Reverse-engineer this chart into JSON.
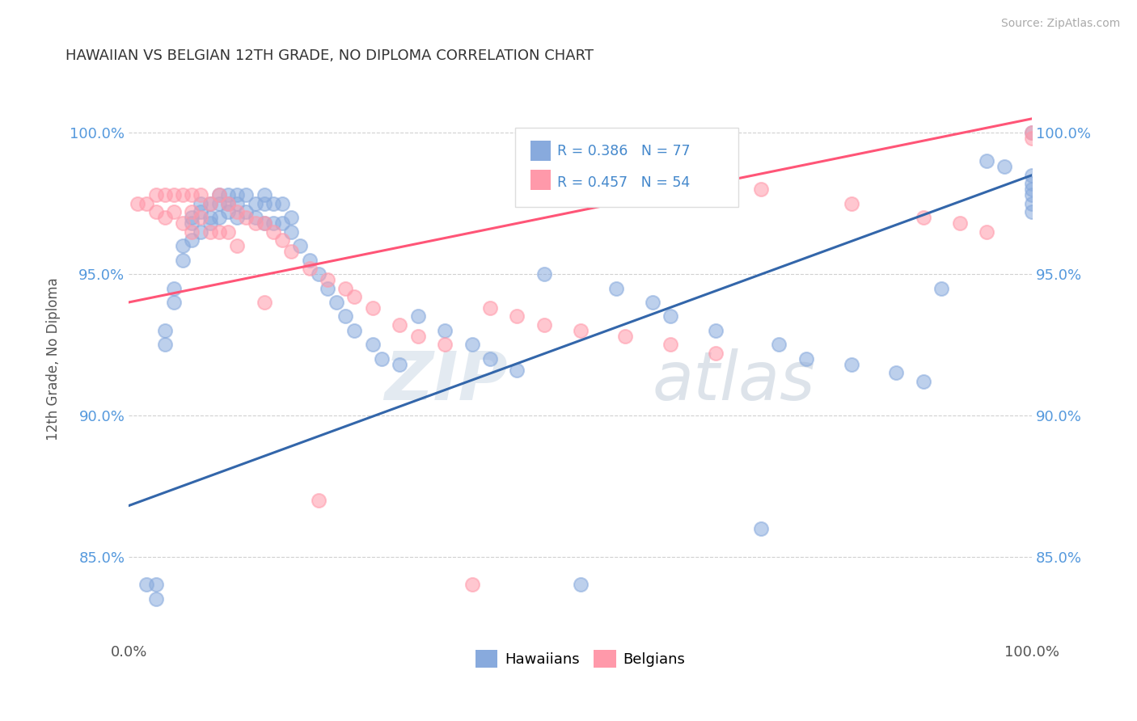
{
  "title": "HAWAIIAN VS BELGIAN 12TH GRADE, NO DIPLOMA CORRELATION CHART",
  "source_text": "Source: ZipAtlas.com",
  "ylabel": "12th Grade, No Diploma",
  "xlim": [
    0.0,
    1.0
  ],
  "ylim": [
    0.82,
    1.02
  ],
  "ytick_values": [
    0.85,
    0.9,
    0.95,
    1.0
  ],
  "legend_R_hawaiian": "R = 0.386",
  "legend_N_hawaiian": "N = 77",
  "legend_R_belgian": "R = 0.457",
  "legend_N_belgian": "N = 54",
  "color_hawaiian": "#88AADD",
  "color_belgian": "#FF99AA",
  "color_line_hawaiian": "#3366AA",
  "color_line_belgian": "#FF5577",
  "hawaiian_line_start_y": 0.868,
  "hawaiian_line_end_y": 0.985,
  "belgian_line_start_y": 0.94,
  "belgian_line_end_y": 1.005,
  "hawaiian_x": [
    0.02,
    0.03,
    0.03,
    0.04,
    0.04,
    0.05,
    0.05,
    0.06,
    0.06,
    0.07,
    0.07,
    0.07,
    0.08,
    0.08,
    0.08,
    0.09,
    0.09,
    0.09,
    0.1,
    0.1,
    0.1,
    0.11,
    0.11,
    0.11,
    0.12,
    0.12,
    0.12,
    0.13,
    0.13,
    0.14,
    0.14,
    0.15,
    0.15,
    0.15,
    0.16,
    0.16,
    0.17,
    0.17,
    0.18,
    0.18,
    0.19,
    0.2,
    0.21,
    0.22,
    0.23,
    0.24,
    0.25,
    0.27,
    0.28,
    0.3,
    0.32,
    0.35,
    0.38,
    0.4,
    0.43,
    0.46,
    0.5,
    0.54,
    0.58,
    0.6,
    0.65,
    0.7,
    0.72,
    0.75,
    0.8,
    0.85,
    0.88,
    0.9,
    0.95,
    0.97,
    1.0,
    1.0,
    1.0,
    1.0,
    1.0,
    1.0,
    1.0
  ],
  "hawaiian_y": [
    0.84,
    0.84,
    0.835,
    0.93,
    0.925,
    0.945,
    0.94,
    0.96,
    0.955,
    0.97,
    0.968,
    0.962,
    0.975,
    0.972,
    0.965,
    0.975,
    0.97,
    0.968,
    0.978,
    0.975,
    0.97,
    0.978,
    0.975,
    0.972,
    0.978,
    0.975,
    0.97,
    0.978,
    0.972,
    0.975,
    0.97,
    0.978,
    0.975,
    0.968,
    0.975,
    0.968,
    0.975,
    0.968,
    0.97,
    0.965,
    0.96,
    0.955,
    0.95,
    0.945,
    0.94,
    0.935,
    0.93,
    0.925,
    0.92,
    0.918,
    0.935,
    0.93,
    0.925,
    0.92,
    0.916,
    0.95,
    0.84,
    0.945,
    0.94,
    0.935,
    0.93,
    0.86,
    0.925,
    0.92,
    0.918,
    0.915,
    0.912,
    0.945,
    0.99,
    0.988,
    0.985,
    0.982,
    0.98,
    0.978,
    0.975,
    0.972,
    1.0
  ],
  "belgian_x": [
    0.01,
    0.02,
    0.03,
    0.03,
    0.04,
    0.04,
    0.05,
    0.05,
    0.06,
    0.06,
    0.07,
    0.07,
    0.07,
    0.08,
    0.08,
    0.09,
    0.09,
    0.1,
    0.1,
    0.11,
    0.11,
    0.12,
    0.12,
    0.13,
    0.14,
    0.15,
    0.15,
    0.16,
    0.17,
    0.18,
    0.2,
    0.21,
    0.22,
    0.24,
    0.25,
    0.27,
    0.3,
    0.32,
    0.35,
    0.38,
    0.4,
    0.43,
    0.46,
    0.5,
    0.55,
    0.6,
    0.65,
    0.7,
    0.8,
    0.88,
    0.92,
    0.95,
    1.0,
    1.0
  ],
  "belgian_y": [
    0.975,
    0.975,
    0.978,
    0.972,
    0.978,
    0.97,
    0.978,
    0.972,
    0.978,
    0.968,
    0.978,
    0.972,
    0.965,
    0.978,
    0.97,
    0.975,
    0.965,
    0.978,
    0.965,
    0.975,
    0.965,
    0.972,
    0.96,
    0.97,
    0.968,
    0.968,
    0.94,
    0.965,
    0.962,
    0.958,
    0.952,
    0.87,
    0.948,
    0.945,
    0.942,
    0.938,
    0.932,
    0.928,
    0.925,
    0.84,
    0.938,
    0.935,
    0.932,
    0.93,
    0.928,
    0.925,
    0.922,
    0.98,
    0.975,
    0.97,
    0.968,
    0.965,
    0.998,
    1.0
  ]
}
